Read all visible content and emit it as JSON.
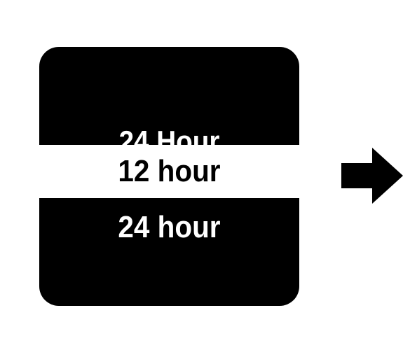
{
  "screen": {
    "title": "24 Hour",
    "options": [
      {
        "label": "12 hour",
        "selected": true
      },
      {
        "label": "24 hour",
        "selected": false
      }
    ]
  },
  "navigation": {
    "next_icon": "right-arrow-icon"
  },
  "colors": {
    "screen_background": "#000000",
    "text_on_screen": "#ffffff",
    "selection_highlight": "#ffffff",
    "selected_text": "#000000",
    "arrow": "#000000"
  }
}
